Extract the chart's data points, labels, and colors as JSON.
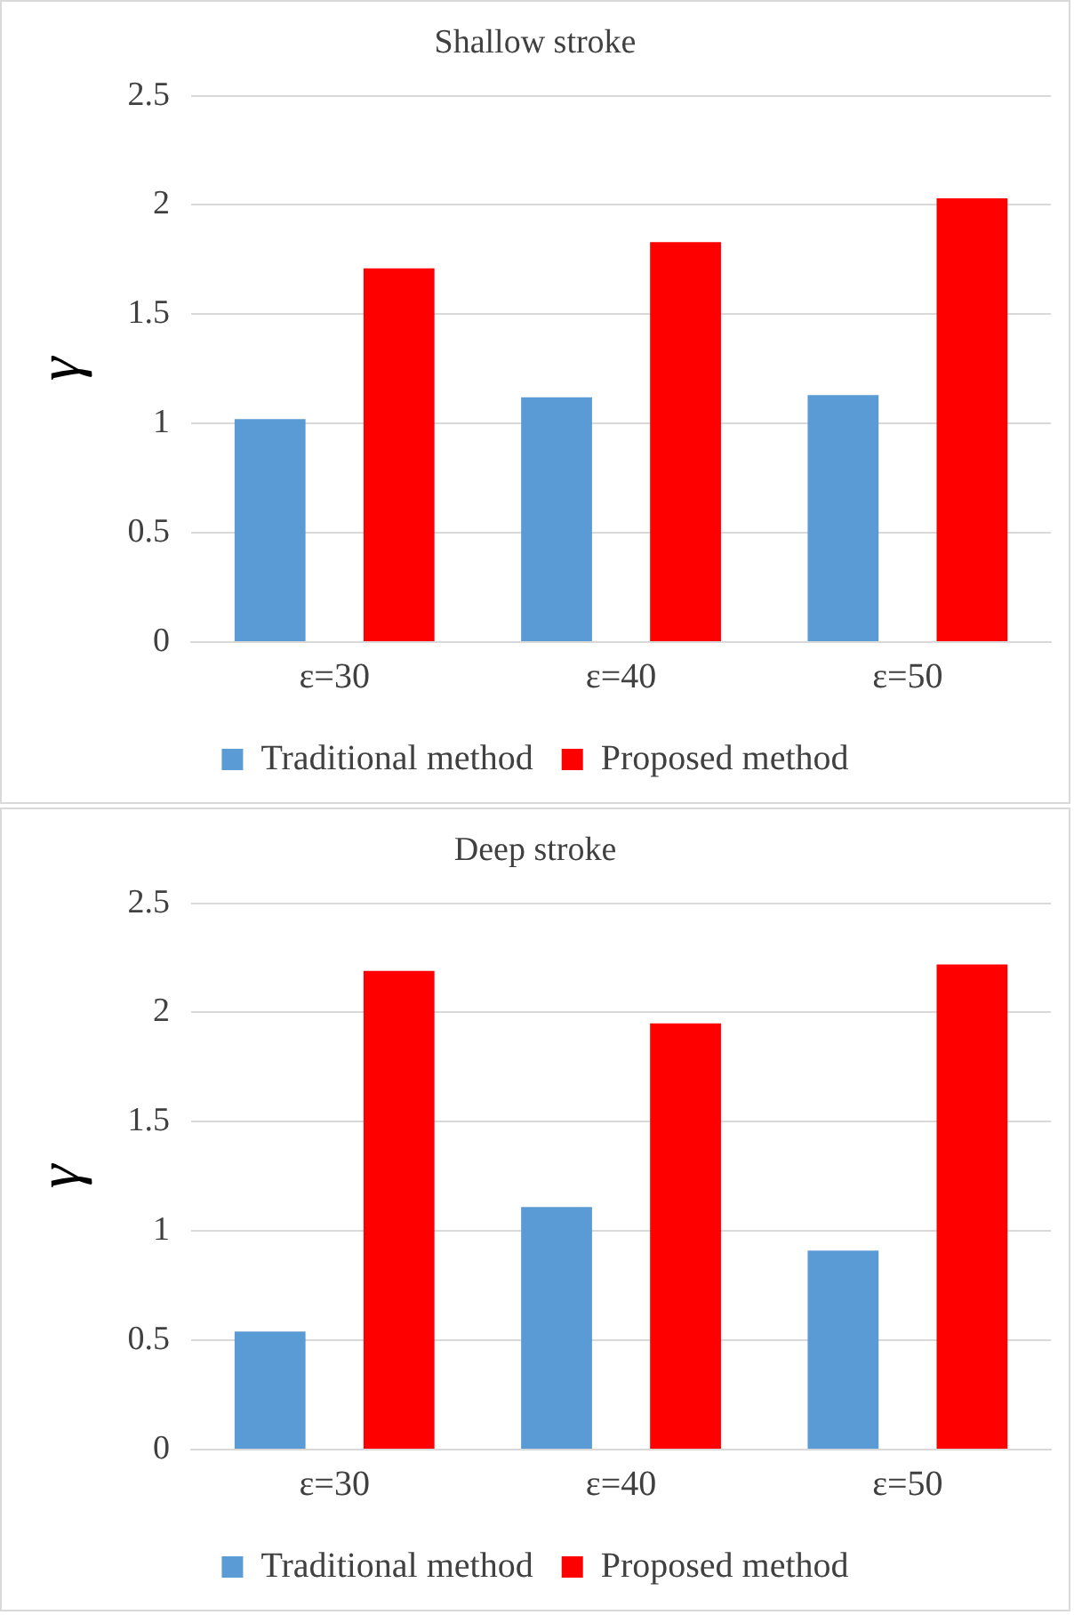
{
  "chart_data": [
    {
      "type": "bar",
      "title": "Shallow stroke",
      "ylabel": "γ",
      "categories": [
        "ε=30",
        "ε=40",
        "ε=50"
      ],
      "series": [
        {
          "name": "Traditional method",
          "color": "#5b9bd5",
          "values": [
            1.02,
            1.12,
            1.13
          ]
        },
        {
          "name": "Proposed method",
          "color": "#ff0000",
          "values": [
            1.71,
            1.83,
            2.03
          ]
        }
      ],
      "ylim": [
        0,
        2.5
      ],
      "yticks": [
        0,
        0.5,
        1,
        1.5,
        2,
        2.5
      ],
      "grid": "y",
      "legend": "bottom"
    },
    {
      "type": "bar",
      "title": "Deep stroke",
      "ylabel": "γ",
      "categories": [
        "ε=30",
        "ε=40",
        "ε=50"
      ],
      "series": [
        {
          "name": "Traditional method",
          "color": "#5b9bd5",
          "values": [
            0.54,
            1.11,
            0.91
          ]
        },
        {
          "name": "Proposed method",
          "color": "#ff0000",
          "values": [
            2.19,
            1.95,
            2.22
          ]
        }
      ],
      "ylim": [
        0,
        2.5
      ],
      "yticks": [
        0,
        0.5,
        1,
        1.5,
        2,
        2.5
      ],
      "grid": "y",
      "legend": "bottom"
    }
  ]
}
